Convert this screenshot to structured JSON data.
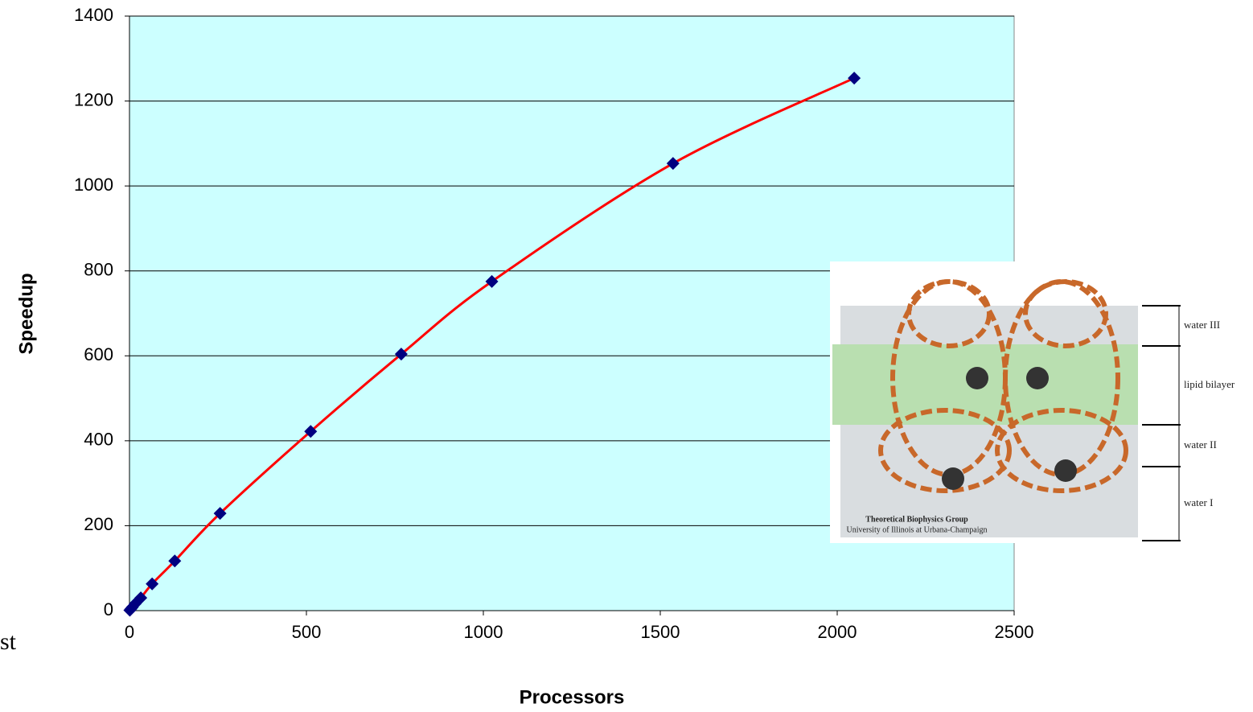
{
  "chart_data": {
    "type": "scatter",
    "x_label": "Processors",
    "y_label": "Speedup",
    "x": [
      1,
      4,
      8,
      16,
      32,
      64,
      128,
      256,
      512,
      768,
      1024,
      1536,
      2048
    ],
    "values": [
      1,
      4,
      8,
      16,
      30,
      63,
      117,
      229,
      422,
      604,
      775,
      1053,
      1254
    ],
    "color": "#000080",
    "line_color": "#ff0000",
    "xlim": [
      0,
      2500
    ],
    "xticks": [
      0,
      500,
      1000,
      1500,
      2000,
      2500
    ],
    "ylim": [
      0,
      1400
    ],
    "yticks": [
      0,
      200,
      400,
      600,
      800,
      1000,
      1200,
      1400
    ],
    "grid": true,
    "plot_background": "#ccffff"
  },
  "inset": {
    "layers": [
      "water III",
      "lipid bilayer",
      "water II",
      "water I"
    ],
    "credit": [
      "Theoretical Biophysics Group",
      "University of Illinois at Urbana-Champaign"
    ]
  },
  "fragment": "st"
}
